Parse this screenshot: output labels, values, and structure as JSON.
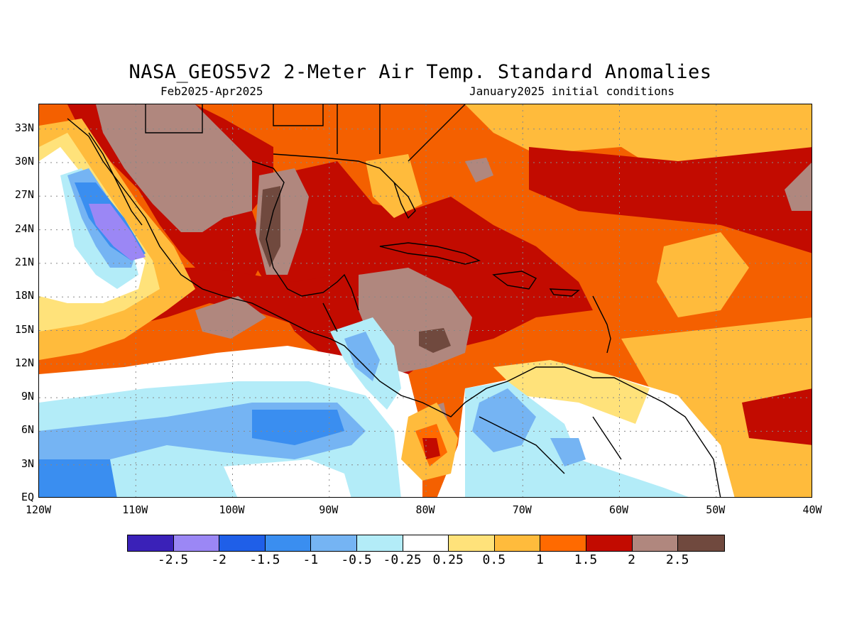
{
  "title": "NASA_GEOS5v2 2-Meter Air Temp. Standard Anomalies",
  "subtitle_left": "Feb2025-Apr2025",
  "subtitle_right": "January2025 initial conditions",
  "lat_labels": [
    "33N",
    "30N",
    "27N",
    "24N",
    "21N",
    "18N",
    "15N",
    "12N",
    "9N",
    "6N",
    "3N",
    "EQ"
  ],
  "lon_labels": [
    "120W",
    "110W",
    "100W",
    "90W",
    "80W",
    "70W",
    "60W",
    "50W",
    "40W"
  ],
  "colorbar": {
    "colors": [
      "#3a21b8",
      "#9b87f5",
      "#1f5fe8",
      "#3a8ef0",
      "#75b4f3",
      "#b3ecf8",
      "#ffffff",
      "#ffe27a",
      "#ffbb3c",
      "#ff6a00",
      "#c20b00",
      "#b0877e",
      "#70493e"
    ],
    "labels": [
      "-2.5",
      "-2",
      "-1.5",
      "-1",
      "-0.5",
      "-0.25",
      "0.25",
      "0.5",
      "1",
      "1.5",
      "2",
      "2.5"
    ]
  },
  "palette": {
    "warm_extreme": "#70493e",
    "warm_very_high": "#b0877e",
    "warm_high": "#c20b00",
    "warm_mid": "#ff6a00",
    "warm_low": "#ffbb3c",
    "warm_slight": "#ffe27a",
    "neutral": "#ffffff",
    "cool_slight": "#b3ecf8",
    "cool_low": "#75b4f3",
    "cool_mid": "#3a8ef0",
    "cool_high": "#1f5fe8",
    "cool_very_high": "#9b87f5"
  }
}
